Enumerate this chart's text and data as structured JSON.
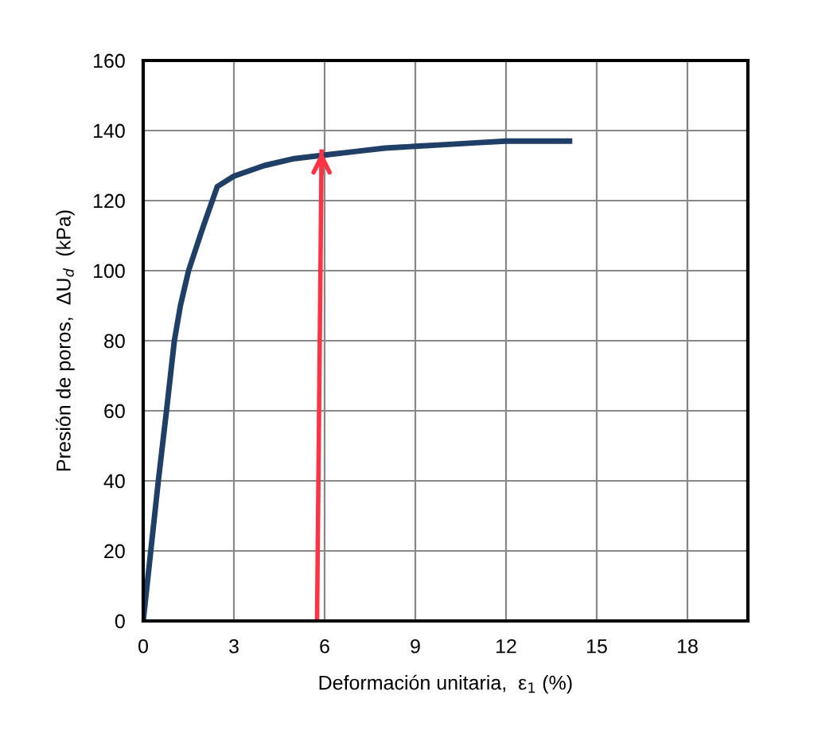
{
  "chart_data": {
    "type": "line",
    "xlabel": "Deformación unitaria,  ε$_{1}$ (%)",
    "ylabel": "Presión de poros,  ΔU$_{d}$  (kPa)",
    "xlim": [
      0,
      20
    ],
    "xticks": [
      0,
      3,
      6,
      9,
      12,
      15,
      18
    ],
    "ylim": [
      0,
      160
    ],
    "yticks": [
      0,
      20,
      40,
      60,
      80,
      100,
      120,
      140,
      160
    ],
    "grid": true,
    "series": [
      {
        "color": "#1f3f66",
        "x": [
          0,
          0.5,
          0.77,
          1.03,
          1.23,
          1.5,
          2.0,
          2.45,
          3,
          4,
          5,
          6,
          7,
          8,
          9,
          10,
          11,
          12,
          13,
          14.1
        ],
        "values": [
          0,
          40,
          60,
          80,
          90,
          100,
          113,
          124,
          127,
          130,
          132,
          133,
          134,
          135,
          135.5,
          136,
          136.5,
          137,
          137,
          137
        ]
      },
      {
        "color": "#ff3344",
        "x": [
          5.75,
          5.9
        ],
        "values": [
          0,
          134
        ]
      }
    ]
  }
}
